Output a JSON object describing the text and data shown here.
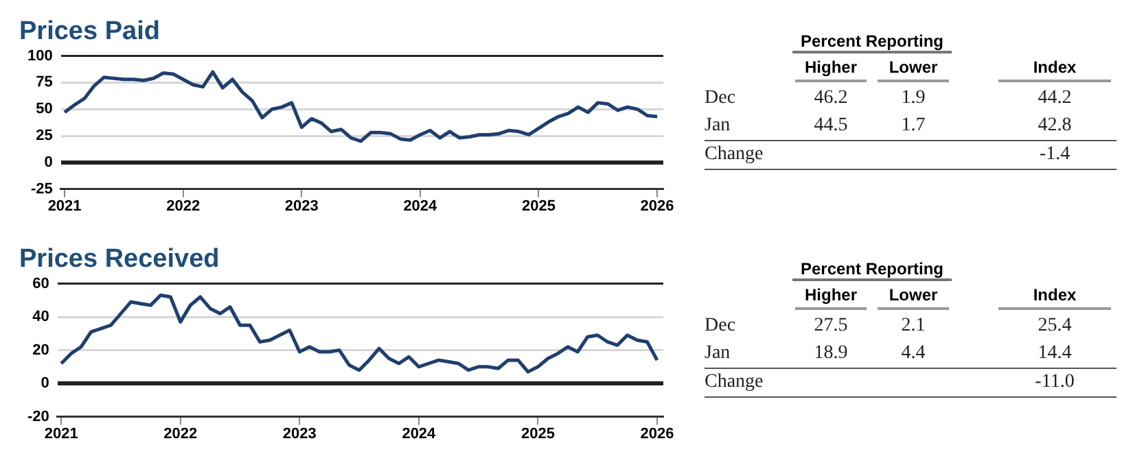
{
  "chart_data": [
    {
      "type": "line",
      "title": "Prices Paid",
      "x": [
        "2021-01",
        "2021-02",
        "2021-03",
        "2021-04",
        "2021-05",
        "2021-06",
        "2021-07",
        "2021-08",
        "2021-09",
        "2021-10",
        "2021-11",
        "2021-12",
        "2022-01",
        "2022-02",
        "2022-03",
        "2022-04",
        "2022-05",
        "2022-06",
        "2022-07",
        "2022-08",
        "2022-09",
        "2022-10",
        "2022-11",
        "2022-12",
        "2023-01",
        "2023-02",
        "2023-03",
        "2023-04",
        "2023-05",
        "2023-06",
        "2023-07",
        "2023-08",
        "2023-09",
        "2023-10",
        "2023-11",
        "2023-12",
        "2024-01",
        "2024-02",
        "2024-03",
        "2024-04",
        "2024-05",
        "2024-06",
        "2024-07",
        "2024-08",
        "2024-09",
        "2024-10",
        "2024-11",
        "2024-12",
        "2025-01",
        "2025-02",
        "2025-03",
        "2025-04",
        "2025-05",
        "2025-06",
        "2025-07",
        "2025-08",
        "2025-09",
        "2025-10",
        "2025-11",
        "2025-12",
        "2026-01"
      ],
      "series": [
        {
          "color": "#1f3f6e",
          "values": [
            47,
            54,
            60,
            72,
            80,
            79,
            78,
            78,
            77,
            79,
            84,
            83,
            78,
            73,
            71,
            85,
            70,
            78,
            66,
            58,
            42,
            50,
            52,
            56,
            33,
            41,
            37,
            29,
            31,
            23,
            20,
            28,
            28,
            27,
            22,
            21,
            26,
            30,
            23,
            29,
            23,
            24,
            26,
            26,
            27,
            30,
            29,
            26,
            32,
            38,
            43,
            46,
            52,
            47,
            56,
            55,
            49,
            52,
            50,
            44,
            43
          ]
        }
      ],
      "xlim": [
        "2020-12-20",
        "2026-01-20"
      ],
      "xticks": [
        "2021",
        "2022",
        "2023",
        "2024",
        "2025",
        "2026"
      ],
      "ylim": [
        -25,
        100
      ],
      "yticks": [
        -25,
        0,
        25,
        50,
        75,
        100
      ],
      "grid": "y",
      "legend": false,
      "marker": "none",
      "line_style": "solid"
    },
    {
      "type": "other",
      "subtitle": "Percent Reporting",
      "categories": [
        "Dec",
        "Jan",
        "Change"
      ],
      "series": [
        {
          "name": "Higher",
          "values": [
            46.2,
            44.5,
            null
          ],
          "value_labels": [
            "46.2",
            "44.5",
            null
          ]
        },
        {
          "name": "Lower",
          "values": [
            1.9,
            1.7,
            null
          ],
          "value_labels": [
            "1.9",
            "1.7",
            null
          ]
        },
        {
          "name": "Index",
          "values": [
            44.2,
            42.8,
            -1.4
          ],
          "value_labels": [
            "44.2",
            "42.8",
            "-1.4"
          ]
        }
      ]
    },
    {
      "type": "line",
      "title": "Prices Received",
      "x": [
        "2021-01",
        "2021-02",
        "2021-03",
        "2021-04",
        "2021-05",
        "2021-06",
        "2021-07",
        "2021-08",
        "2021-09",
        "2021-10",
        "2021-11",
        "2021-12",
        "2022-01",
        "2022-02",
        "2022-03",
        "2022-04",
        "2022-05",
        "2022-06",
        "2022-07",
        "2022-08",
        "2022-09",
        "2022-10",
        "2022-11",
        "2022-12",
        "2023-01",
        "2023-02",
        "2023-03",
        "2023-04",
        "2023-05",
        "2023-06",
        "2023-07",
        "2023-08",
        "2023-09",
        "2023-10",
        "2023-11",
        "2023-12",
        "2024-01",
        "2024-02",
        "2024-03",
        "2024-04",
        "2024-05",
        "2024-06",
        "2024-07",
        "2024-08",
        "2024-09",
        "2024-10",
        "2024-11",
        "2024-12",
        "2025-01",
        "2025-02",
        "2025-03",
        "2025-04",
        "2025-05",
        "2025-06",
        "2025-07",
        "2025-08",
        "2025-09",
        "2025-10",
        "2025-11",
        "2025-12",
        "2026-01"
      ],
      "series": [
        {
          "color": "#1f3f6e",
          "values": [
            12,
            18,
            22,
            31,
            33,
            35,
            42,
            49,
            48,
            47,
            53,
            52,
            37,
            47,
            52,
            45,
            42,
            46,
            35,
            35,
            25,
            26,
            29,
            32,
            19,
            22,
            19,
            19,
            20,
            11,
            8,
            14,
            21,
            15,
            12,
            16,
            10,
            12,
            14,
            13,
            12,
            8,
            10,
            10,
            9,
            14,
            14,
            7,
            10,
            15,
            18,
            22,
            19,
            28,
            29,
            25,
            23,
            29,
            26,
            25,
            14
          ]
        }
      ],
      "xlim": [
        "2020-12-20",
        "2026-01-20"
      ],
      "xticks": [
        "2021",
        "2022",
        "2023",
        "2024",
        "2025",
        "2026"
      ],
      "ylim": [
        -20,
        60
      ],
      "yticks": [
        -20,
        0,
        20,
        40,
        60
      ],
      "grid": "y",
      "legend": false,
      "marker": "none",
      "line_style": "solid"
    },
    {
      "type": "other",
      "subtitle": "Percent Reporting",
      "categories": [
        "Dec",
        "Jan",
        "Change"
      ],
      "series": [
        {
          "name": "Higher",
          "values": [
            27.5,
            18.9,
            null
          ],
          "value_labels": [
            "27.5",
            "18.9",
            null
          ]
        },
        {
          "name": "Lower",
          "values": [
            2.1,
            4.4,
            null
          ],
          "value_labels": [
            "2.1",
            "4.4",
            null
          ]
        },
        {
          "name": "Index",
          "values": [
            25.4,
            14.4,
            -11.0
          ],
          "value_labels": [
            "25.4",
            "14.4",
            "-11.0"
          ]
        }
      ]
    }
  ]
}
